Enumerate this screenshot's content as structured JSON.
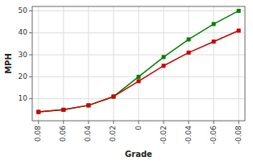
{
  "chart_data": {
    "type": "line",
    "x": [
      0.08,
      0.06,
      0.04,
      0.02,
      0,
      -0.02,
      -0.04,
      -0.06,
      -0.08
    ],
    "series": [
      {
        "color": "#008000",
        "values": [
          4,
          5,
          7,
          11,
          20,
          29,
          37,
          44,
          50
        ]
      },
      {
        "color": "#cc0000",
        "values": [
          4,
          5,
          7,
          11,
          18,
          25,
          31,
          36,
          41
        ]
      }
    ],
    "xlabel": "Grade",
    "ylabel": "MPH",
    "xlim": [
      0.085,
      -0.085
    ],
    "ylim": [
      0,
      52
    ],
    "xticks": [
      0.08,
      0.06,
      0.04,
      0.02,
      0,
      -0.02,
      -0.04,
      -0.06,
      -0.08
    ],
    "yticks": [
      10,
      20,
      30,
      40,
      50
    ],
    "grid": true,
    "marker": "square"
  }
}
